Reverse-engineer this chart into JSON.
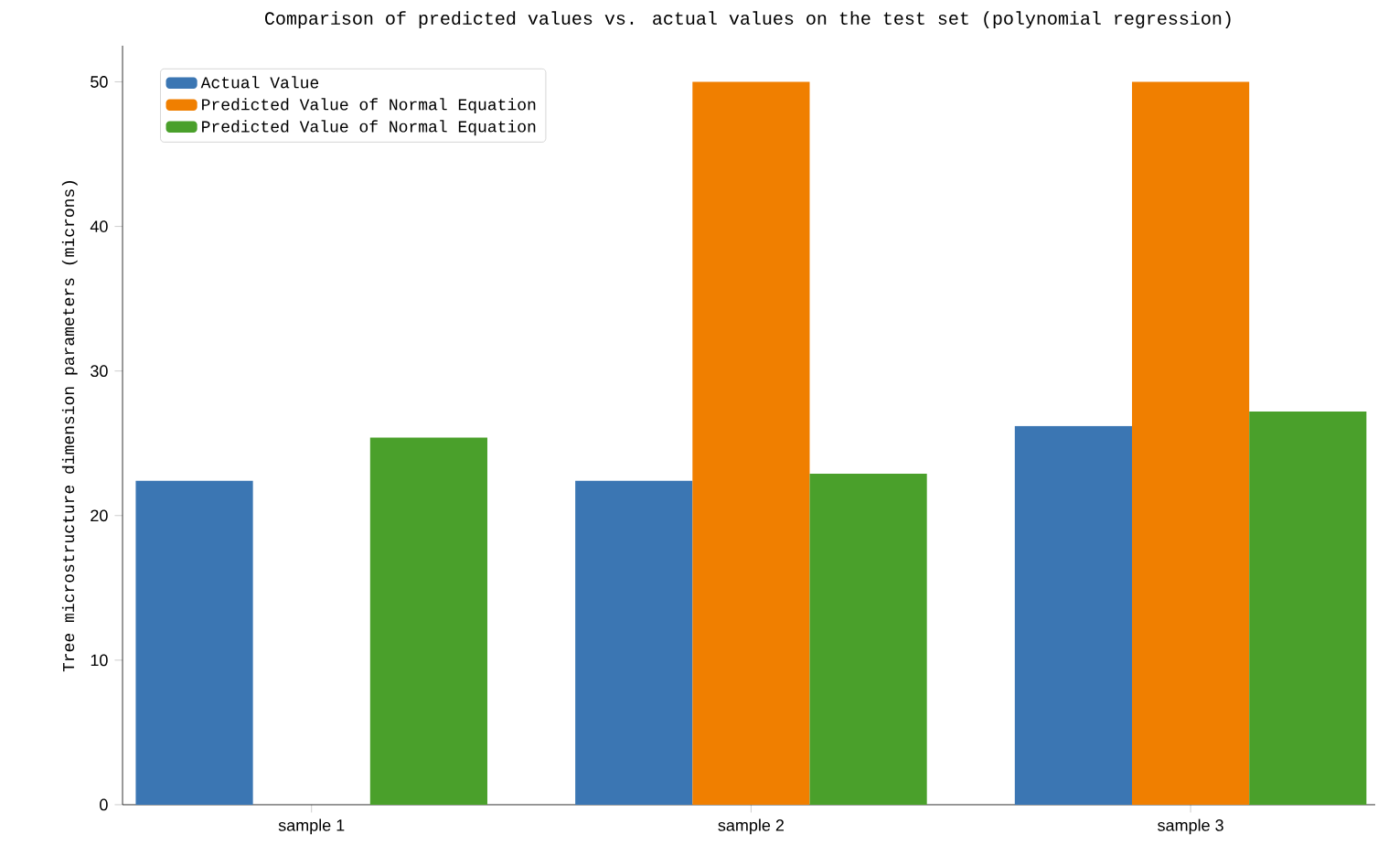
{
  "chart_data": {
    "type": "bar",
    "title": "Comparison of predicted values vs. actual values on the test set (polynomial regression)",
    "ylabel": "Tree microstructure dimension parameters (microns)",
    "categories": [
      "sample 1",
      "sample 2",
      "sample 3"
    ],
    "series": [
      {
        "name": "Actual Value",
        "color": "#3b76b3",
        "values": [
          22.4,
          22.4,
          26.2
        ]
      },
      {
        "name": "Predicted Value of Normal Equation",
        "color": "#f07f00",
        "values": [
          0,
          50,
          50
        ]
      },
      {
        "name": "Predicted Value of Normal Equation",
        "color": "#4aa02b",
        "values": [
          25.4,
          22.9,
          27.2
        ]
      }
    ],
    "ylim": [
      0,
      52.5
    ],
    "yticks": [
      0,
      10,
      20,
      30,
      40,
      50
    ],
    "legend": "top left",
    "grid": false
  }
}
